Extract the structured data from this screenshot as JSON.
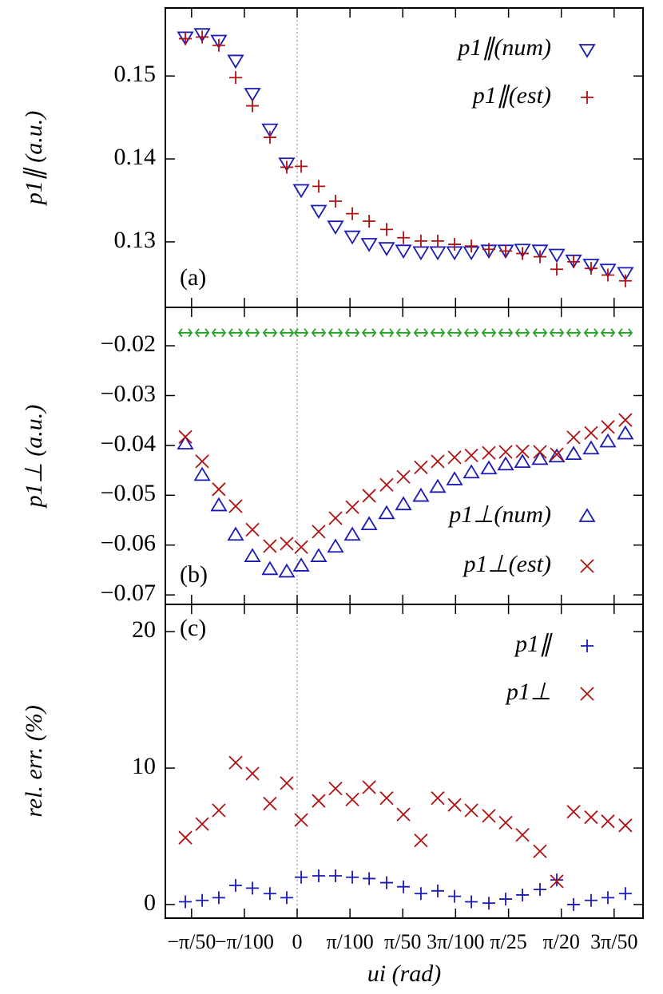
{
  "chart_data": [
    {
      "type": "scatter",
      "ylabel": "p1∥ (a.u.)",
      "annotation": "(a)",
      "legend": "upper right",
      "vline": 0,
      "xlim": [
        -0.0784,
        0.2057
      ],
      "ylim": [
        0.1221,
        0.1582
      ],
      "yticks": [
        0.13,
        0.14,
        0.15
      ],
      "x": [
        -0.0665,
        -0.0565,
        -0.0466,
        -0.0366,
        -0.0266,
        -0.0162,
        -0.0062,
        0.0024,
        0.0128,
        0.0228,
        0.0328,
        0.0428,
        0.0532,
        0.0632,
        0.0736,
        0.0836,
        0.0936,
        0.1036,
        0.114,
        0.124,
        0.134,
        0.1444,
        0.1544,
        0.1644,
        0.1748,
        0.1848,
        0.1952
      ],
      "series": [
        {
          "name": "p1∥(num)",
          "color": "#1a1ab4",
          "marker": "triangle-down",
          "values": [
            0.1547,
            0.1551,
            0.1543,
            0.1519,
            0.1479,
            0.1436,
            0.1395,
            0.1363,
            0.1338,
            0.1319,
            0.1307,
            0.1298,
            0.1293,
            0.129,
            0.1288,
            0.1288,
            0.1288,
            0.1288,
            0.129,
            0.129,
            0.1291,
            0.129,
            0.1285,
            0.1278,
            0.1273,
            0.1267,
            0.1263
          ]
        },
        {
          "name": "p1∥(est)",
          "color": "#b01010",
          "marker": "plus",
          "values": [
            0.1545,
            0.1547,
            0.1537,
            0.1498,
            0.1464,
            0.1426,
            0.139,
            0.1391,
            0.1367,
            0.1349,
            0.1334,
            0.1325,
            0.1315,
            0.1305,
            0.1301,
            0.1301,
            0.1297,
            0.1295,
            0.1291,
            0.1289,
            0.1286,
            0.1282,
            0.1267,
            0.1276,
            0.1268,
            0.126,
            0.1253
          ]
        }
      ]
    },
    {
      "type": "scatter",
      "ylabel": "p1⊥ (a.u.)",
      "annotation": "(b)",
      "legend": "lower right",
      "vline": 0,
      "xlim": [
        -0.0784,
        0.2057
      ],
      "ylim": [
        -0.0719,
        -0.0123
      ],
      "yticks": [
        {
          "value": -0.07,
          "label": "−0.07"
        },
        {
          "value": -0.06,
          "label": "−0.06"
        },
        {
          "value": -0.05,
          "label": "−0.05"
        },
        {
          "value": -0.04,
          "label": "−0.04"
        },
        {
          "value": -0.03,
          "label": "−0.03"
        },
        {
          "value": -0.02,
          "label": "−0.02"
        }
      ],
      "x": [
        -0.0665,
        -0.0565,
        -0.0466,
        -0.0366,
        -0.0266,
        -0.0162,
        -0.0062,
        0.0024,
        0.0128,
        0.0228,
        0.0328,
        0.0428,
        0.0532,
        0.0632,
        0.0736,
        0.0836,
        0.0936,
        0.1036,
        0.114,
        0.124,
        0.134,
        0.1444,
        0.1544,
        0.1644,
        0.1748,
        0.1848,
        0.1952
      ],
      "series": [
        {
          "color": "#22a022",
          "marker": "double-arrow",
          "values": [
            -0.0174,
            -0.0174,
            -0.0174,
            -0.0174,
            -0.0174,
            -0.0174,
            -0.0174,
            -0.0174,
            -0.0174,
            -0.0174,
            -0.0174,
            -0.0174,
            -0.0174,
            -0.0174,
            -0.0174,
            -0.0174,
            -0.0174,
            -0.0174,
            -0.0174,
            -0.0174,
            -0.0174,
            -0.0174,
            -0.0174,
            -0.0174,
            -0.0174,
            -0.0174,
            -0.0174
          ]
        },
        {
          "name": "p1⊥(num)",
          "color": "#1a1ab4",
          "marker": "triangle-up",
          "values": [
            -0.0397,
            -0.046,
            -0.0521,
            -0.058,
            -0.0623,
            -0.0649,
            -0.0654,
            -0.0642,
            -0.0623,
            -0.0604,
            -0.058,
            -0.0559,
            -0.0537,
            -0.0519,
            -0.0502,
            -0.0484,
            -0.0469,
            -0.0455,
            -0.0447,
            -0.0439,
            -0.0434,
            -0.0428,
            -0.0423,
            -0.0418,
            -0.0407,
            -0.0393,
            -0.0377
          ]
        },
        {
          "name": "p1⊥(est)",
          "color": "#b01010",
          "marker": "cross",
          "values": [
            -0.0383,
            -0.0432,
            -0.0488,
            -0.0522,
            -0.0569,
            -0.0602,
            -0.0597,
            -0.0604,
            -0.0573,
            -0.0546,
            -0.0524,
            -0.0501,
            -0.0479,
            -0.0463,
            -0.0444,
            -0.0432,
            -0.0424,
            -0.042,
            -0.0415,
            -0.0413,
            -0.0412,
            -0.0413,
            -0.0418,
            -0.0384,
            -0.0375,
            -0.0363,
            -0.0349
          ]
        }
      ]
    },
    {
      "type": "scatter",
      "ylabel": "rel. err. (%)",
      "xlabel": "ui (rad)",
      "annotation": "(c)",
      "legend": "upper right",
      "vline": 0,
      "xlim": [
        -0.0784,
        0.2057
      ],
      "ylim": [
        -1,
        22
      ],
      "yticks": [
        0,
        10,
        20
      ],
      "xticks": [
        {
          "value": -0.0628,
          "label": "−π/50"
        },
        {
          "value": -0.0314,
          "label": "−π/100"
        },
        0,
        {
          "value": 0.0314,
          "label": "π/100"
        },
        {
          "value": 0.0628,
          "label": "π/50"
        },
        {
          "value": 0.0942,
          "label": "3π/100"
        },
        {
          "value": 0.1257,
          "label": "π/25"
        },
        {
          "value": 0.1571,
          "label": "π/20"
        },
        {
          "value": 0.1885,
          "label": "3π/50"
        }
      ],
      "x": [
        -0.0665,
        -0.0565,
        -0.0466,
        -0.0366,
        -0.0266,
        -0.0162,
        -0.0062,
        0.0024,
        0.0128,
        0.0228,
        0.0328,
        0.0428,
        0.0532,
        0.0632,
        0.0736,
        0.0836,
        0.0936,
        0.1036,
        0.114,
        0.124,
        0.134,
        0.1444,
        0.1544,
        0.1644,
        0.1748,
        0.1848,
        0.1952
      ],
      "series": [
        {
          "name": "p1∥",
          "color": "#1a1ab4",
          "marker": "plus",
          "values": [
            0.2,
            0.3,
            0.5,
            1.4,
            1.2,
            0.8,
            0.5,
            2.0,
            2.1,
            2.1,
            2.0,
            1.9,
            1.6,
            1.3,
            0.8,
            1.0,
            0.6,
            0.2,
            0.1,
            0.4,
            0.7,
            1.1,
            1.8,
            0.0,
            0.3,
            0.5,
            0.8
          ]
        },
        {
          "name": "p1⊥",
          "color": "#b01010",
          "marker": "cross",
          "values": [
            4.9,
            5.9,
            6.9,
            10.4,
            9.6,
            7.4,
            8.9,
            6.2,
            7.6,
            8.5,
            7.7,
            8.6,
            7.8,
            6.6,
            4.7,
            7.8,
            7.3,
            6.9,
            6.5,
            6.0,
            5.1,
            3.9,
            1.7,
            6.8,
            6.4,
            6.1,
            5.8
          ]
        }
      ]
    }
  ]
}
